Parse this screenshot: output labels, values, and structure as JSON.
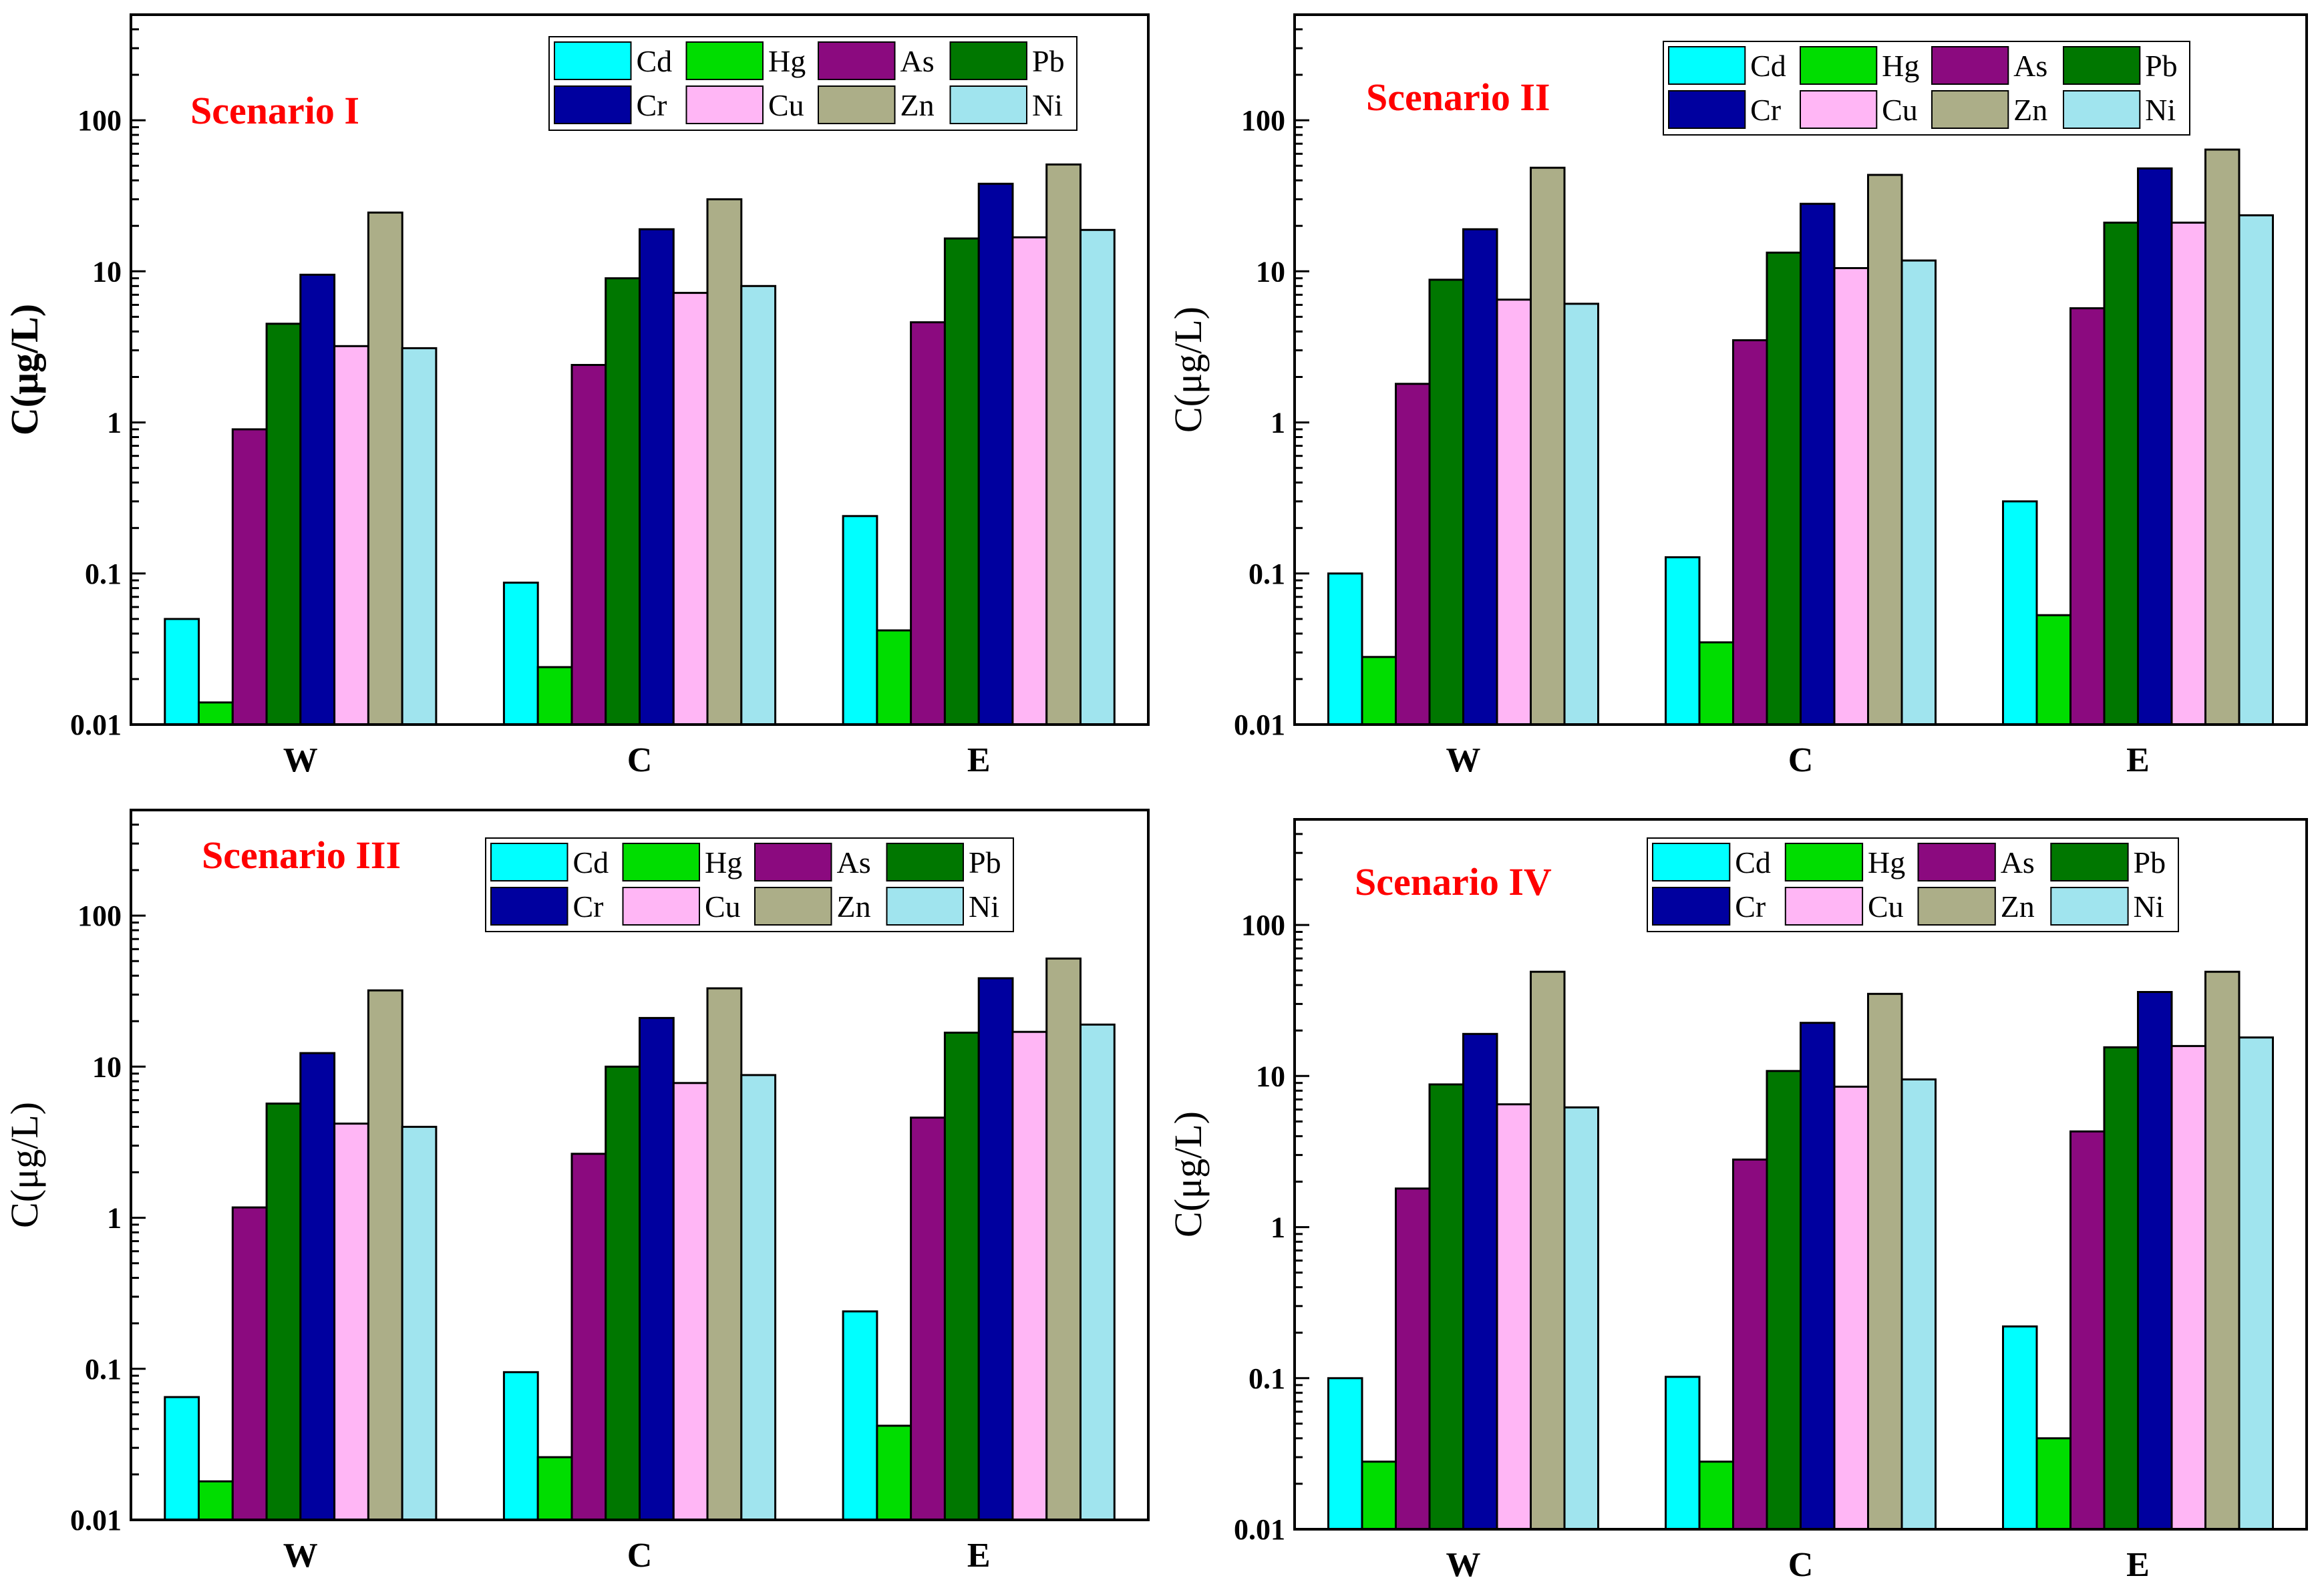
{
  "series_colors": {
    "Cd": "#00ffff",
    "Hg": "#00dd00",
    "As": "#8b0a7f",
    "Pb": "#007700",
    "Cr": "#00009f",
    "Cu": "#ffb6f5",
    "Zn": "#acae88",
    "Ni": "#a0e4ee"
  },
  "chart_data": [
    {
      "type": "bar",
      "title": "Scenario I",
      "xlabel": "",
      "ylabel": "C(μg/L)",
      "ylabel_bold": true,
      "yscale": "log",
      "ylim": [
        0.01,
        500
      ],
      "yticks": [
        "0.01",
        "0.1",
        "1",
        "10",
        "100"
      ],
      "legend_position": "top-right",
      "categories": [
        "W",
        "C",
        "E"
      ],
      "series": [
        {
          "name": "Cd",
          "values": [
            0.05,
            0.087,
            0.24
          ]
        },
        {
          "name": "Hg",
          "values": [
            0.014,
            0.024,
            0.042
          ]
        },
        {
          "name": "As",
          "values": [
            0.9,
            2.4,
            4.6
          ]
        },
        {
          "name": "Pb",
          "values": [
            4.5,
            9.0,
            16.5
          ]
        },
        {
          "name": "Cr",
          "values": [
            9.5,
            19.0,
            38.0
          ]
        },
        {
          "name": "Cu",
          "values": [
            3.2,
            7.2,
            16.8
          ]
        },
        {
          "name": "Zn",
          "values": [
            24.5,
            30.0,
            51.0
          ]
        },
        {
          "name": "Ni",
          "values": [
            3.1,
            8.0,
            18.8
          ]
        }
      ]
    },
    {
      "type": "bar",
      "title": "Scenario II",
      "xlabel": "",
      "ylabel": "C(μg/L)",
      "ylabel_bold": false,
      "yscale": "log",
      "ylim": [
        0.01,
        500
      ],
      "yticks": [
        "0.01",
        "0.1",
        "1",
        "10",
        "100"
      ],
      "legend_position": "top-right",
      "categories": [
        "W",
        "C",
        "E"
      ],
      "series": [
        {
          "name": "Cd",
          "values": [
            0.1,
            0.128,
            0.3
          ]
        },
        {
          "name": "Hg",
          "values": [
            0.028,
            0.035,
            0.053
          ]
        },
        {
          "name": "As",
          "values": [
            1.8,
            3.5,
            5.7
          ]
        },
        {
          "name": "Pb",
          "values": [
            8.8,
            13.3,
            21.0
          ]
        },
        {
          "name": "Cr",
          "values": [
            19.0,
            28.0,
            48.0
          ]
        },
        {
          "name": "Cu",
          "values": [
            6.5,
            10.5,
            21.0
          ]
        },
        {
          "name": "Zn",
          "values": [
            48.5,
            43.5,
            64.0
          ]
        },
        {
          "name": "Ni",
          "values": [
            6.1,
            11.8,
            23.5
          ]
        }
      ]
    },
    {
      "type": "bar",
      "title": "Scenario III",
      "xlabel": "",
      "ylabel": "C(μg/L)",
      "ylabel_bold": false,
      "yscale": "log",
      "ylim": [
        0.01,
        500
      ],
      "yticks": [
        "0.01",
        "0.1",
        "1",
        "10",
        "100"
      ],
      "legend_position": "top-right",
      "categories": [
        "W",
        "C",
        "E"
      ],
      "series": [
        {
          "name": "Cd",
          "values": [
            0.065,
            0.095,
            0.24
          ]
        },
        {
          "name": "Hg",
          "values": [
            0.018,
            0.026,
            0.042
          ]
        },
        {
          "name": "As",
          "values": [
            1.17,
            2.65,
            4.6
          ]
        },
        {
          "name": "Pb",
          "values": [
            5.7,
            10.0,
            16.8
          ]
        },
        {
          "name": "Cr",
          "values": [
            12.3,
            21.0,
            38.5
          ]
        },
        {
          "name": "Cu",
          "values": [
            4.2,
            7.8,
            17.0
          ]
        },
        {
          "name": "Zn",
          "values": [
            32.0,
            33.0,
            52.0
          ]
        },
        {
          "name": "Ni",
          "values": [
            4.0,
            8.8,
            19.0
          ]
        }
      ]
    },
    {
      "type": "bar",
      "title": "Scenario IV",
      "xlabel": "",
      "ylabel": "C(μg/L)",
      "ylabel_bold": false,
      "yscale": "log",
      "ylim": [
        0.01,
        500
      ],
      "yticks": [
        "0.01",
        "0.1",
        "1",
        "10",
        "100"
      ],
      "legend_position": "top-right",
      "categories": [
        "W",
        "C",
        "E"
      ],
      "series": [
        {
          "name": "Cd",
          "values": [
            0.1,
            0.102,
            0.22
          ]
        },
        {
          "name": "Hg",
          "values": [
            0.028,
            0.028,
            0.04
          ]
        },
        {
          "name": "As",
          "values": [
            1.8,
            2.8,
            4.3
          ]
        },
        {
          "name": "Pb",
          "values": [
            8.8,
            10.8,
            15.5
          ]
        },
        {
          "name": "Cr",
          "values": [
            19.0,
            22.5,
            36.0
          ]
        },
        {
          "name": "Cu",
          "values": [
            6.5,
            8.5,
            15.8
          ]
        },
        {
          "name": "Zn",
          "values": [
            49.0,
            35.0,
            49.0
          ]
        },
        {
          "name": "Ni",
          "values": [
            6.2,
            9.5,
            18.0
          ]
        }
      ]
    }
  ]
}
